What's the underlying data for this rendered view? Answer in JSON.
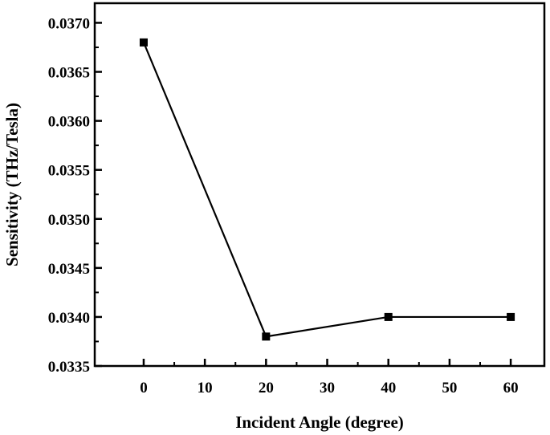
{
  "chart_data": {
    "type": "line",
    "title": "",
    "xlabel": "Incident Angle (degree)",
    "ylabel": "Sensitivity (THz/Tesla)",
    "xlim": [
      -8.0,
      65.5
    ],
    "ylim": [
      0.0335,
      0.0372
    ],
    "x_ticks": [
      0,
      10,
      20,
      30,
      40,
      50,
      60
    ],
    "x_tick_labels": [
      "0",
      "10",
      "20",
      "30",
      "40",
      "50",
      "60"
    ],
    "y_ticks": [
      0.0335,
      0.034,
      0.0345,
      0.035,
      0.0355,
      0.036,
      0.0365,
      0.037
    ],
    "y_tick_labels": [
      "0.0335",
      "0.0340",
      "0.0345",
      "0.0350",
      "0.0355",
      "0.0360",
      "0.0365",
      "0.0370"
    ],
    "grid": false,
    "legend": "none",
    "series": [
      {
        "x": [
          0,
          20,
          40,
          60
        ],
        "values": [
          0.0368,
          0.0338,
          0.034,
          0.034
        ],
        "marker": "square",
        "color": "#000000"
      }
    ]
  }
}
